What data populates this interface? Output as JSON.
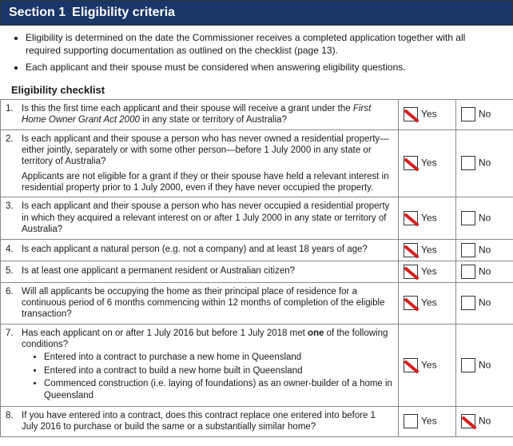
{
  "section": {
    "number": "Section 1",
    "title": "Eligibility criteria"
  },
  "intro": {
    "bullets": [
      "Eligibility is determined on the date the Commissioner receives a completed application together with all required supporting documentation as outlined on the checklist (page 13).",
      "Each applicant and their spouse must be considered when answering eligibility questions."
    ]
  },
  "checklist_heading": "Eligibility checklist",
  "labels": {
    "yes": "Yes",
    "no": "No"
  },
  "questions": [
    {
      "num": "1.",
      "text_pre": "Is this the first time each applicant and their spouse will receive a grant under the ",
      "text_ital": "First Home Owner Grant Act 2000",
      "text_post": " in any state or territory of Australia?",
      "yes": true,
      "no": false
    },
    {
      "num": "2.",
      "text": "Is each applicant and their spouse a person who has never owned a residential property—either jointly, separately or with some other person—before 1 July 2000 in any state or territory of Australia?",
      "note": "Applicants are not eligible for a grant if they or their spouse have held a relevant interest in residential property prior to 1 July 2000, even if they have never occupied the property.",
      "yes": true,
      "no": false
    },
    {
      "num": "3.",
      "text": "Is each applicant and their spouse a person who has never occupied a residential property in which they acquired a relevant interest on or after 1 July 2000 in any state or territory of Australia?",
      "yes": true,
      "no": false
    },
    {
      "num": "4.",
      "text": "Is each applicant a natural person (e.g. not a company) and at least 18 years of age?",
      "yes": true,
      "no": false
    },
    {
      "num": "5.",
      "text": "Is at least one applicant a permanent resident or Australian citizen?",
      "yes": true,
      "no": false
    },
    {
      "num": "6.",
      "text": "Will all applicants be occupying the home as their principal place of residence for a continuous period of 6 months commencing within 12 months of completion of the eligible transaction?",
      "yes": true,
      "no": false
    },
    {
      "num": "7.",
      "text_pre": "Has each applicant on or after 1 July 2016 but before 1 July 2018 met ",
      "text_bold": "one",
      "text_post": " of the following conditions?",
      "subs": [
        "Entered into a contract to purchase a new home in Queensland",
        "Entered into a contract to build a new home built in Queensland",
        "Commenced construction (i.e. laying of foundations) as an owner-builder of a home in Queensland"
      ],
      "yes": true,
      "no": false
    },
    {
      "num": "8.",
      "text": "If you have entered into a contract, does this contract replace one entered into before 1 July 2016 to purchase or build the same or a substantially similar home?",
      "yes": false,
      "no": true
    }
  ]
}
